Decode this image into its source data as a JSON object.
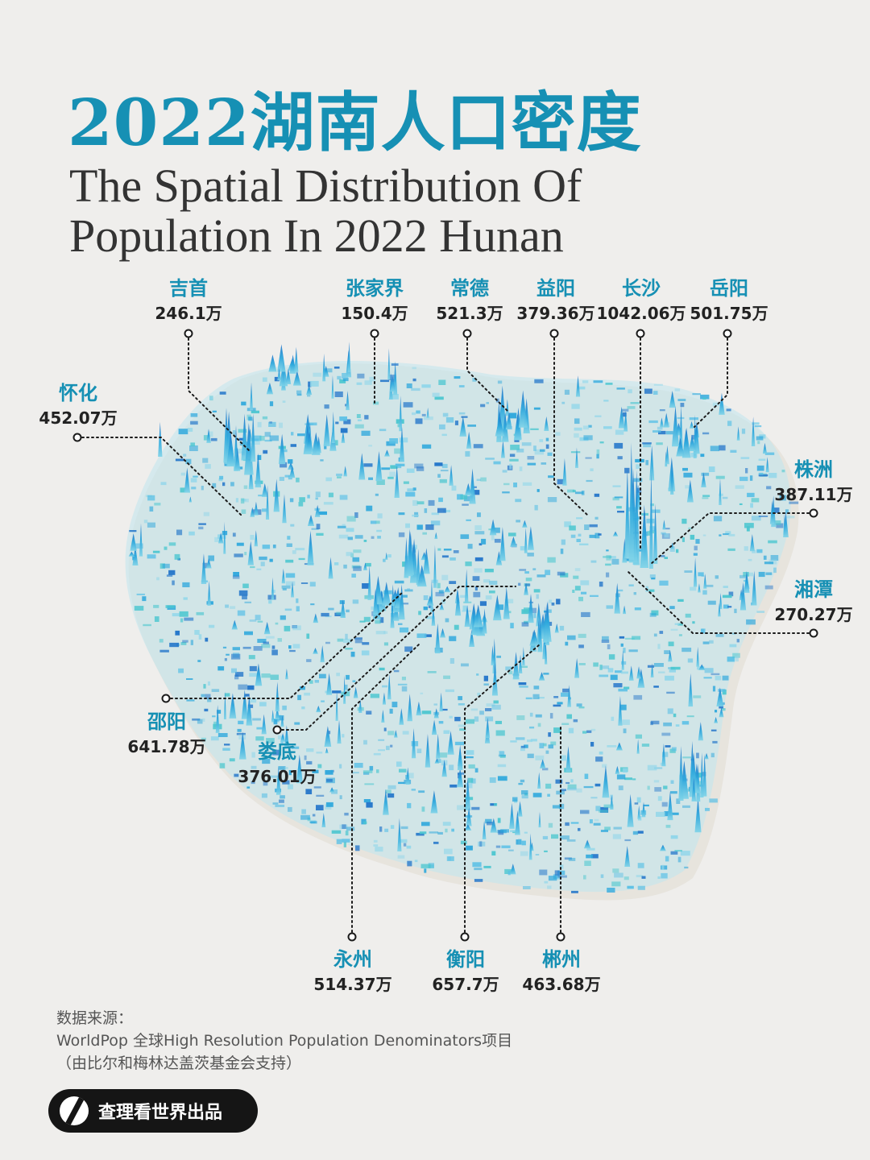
{
  "title": {
    "chinese": "2022湖南人口密度",
    "english_line1": "The Spatial Distribution Of",
    "english_line2": "Population In 2022 Hunan"
  },
  "cities": [
    {
      "id": "jishou",
      "name": "吉首",
      "value": "246.1万"
    },
    {
      "id": "zhangjiajie",
      "name": "张家界",
      "value": "150.4万"
    },
    {
      "id": "changde",
      "name": "常德",
      "value": "521.3万"
    },
    {
      "id": "yiyang",
      "name": "益阳",
      "value": "379.36万"
    },
    {
      "id": "changsha",
      "name": "长沙",
      "value": "1042.06万"
    },
    {
      "id": "yueyang",
      "name": "岳阳",
      "value": "501.75万"
    },
    {
      "id": "huaihua",
      "name": "怀化",
      "value": "452.07万"
    },
    {
      "id": "zhuzhou",
      "name": "株洲",
      "value": "387.11万"
    },
    {
      "id": "xiangtan",
      "name": "湘潭",
      "value": "270.27万"
    },
    {
      "id": "shaoyang",
      "name": "邵阳",
      "value": "641.78万"
    },
    {
      "id": "loudi",
      "name": "娄底",
      "value": "376.01万"
    },
    {
      "id": "yongzhou",
      "name": "永州",
      "value": "514.37万"
    },
    {
      "id": "hengyang",
      "name": "衡阳",
      "value": "657.7万"
    },
    {
      "id": "chenzhou",
      "name": "郴州",
      "value": "463.68万"
    }
  ],
  "source": {
    "heading": "数据来源：",
    "line1": "WorldPop 全球High Resolution Population Denominators项目",
    "line2": "（由比尔和梅林达盖茨基金会支持）"
  },
  "brand": {
    "label": "查理看世界出品"
  },
  "colors": {
    "accent": "#1690b4",
    "map_blue": "#2aa6dc",
    "map_teal": "#49c6cf",
    "map_deep": "#1f73c9",
    "text_dark": "#222222",
    "background": "#efeeec"
  }
}
